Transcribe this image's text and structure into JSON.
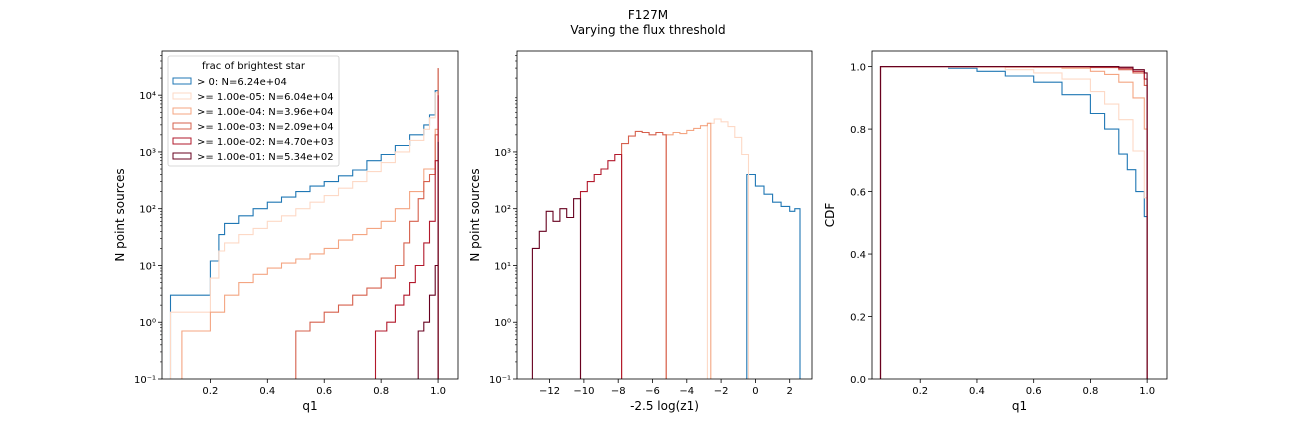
{
  "figure": {
    "title": "F127M",
    "subtitle": "Varying the flux threshold"
  },
  "colors": {
    "blue": "#1f77b4",
    "palest": "#fdd9c6",
    "pale": "#f4a582",
    "medium": "#d6604d",
    "dark": "#b2182b",
    "darkest": "#67001f"
  },
  "chart_data": [
    {
      "type": "histogram-step",
      "xlabel": "q1",
      "ylabel": "N point sources",
      "yscale": "log",
      "xlim": [
        0.03,
        1.07
      ],
      "ylim": [
        0.1,
        60000
      ],
      "xticks": [
        0.2,
        0.4,
        0.6,
        0.8,
        1.0
      ],
      "xtick_labels": [
        "0.2",
        "0.4",
        "0.6",
        "0.8",
        "1.0"
      ],
      "yticks": [
        0.1,
        1,
        10,
        100,
        1000,
        10000
      ],
      "ytick_labels": [
        "10⁻¹",
        "10⁰",
        "10¹",
        "10²",
        "10³",
        "10⁴"
      ],
      "legend": {
        "title": "frac of brightest star",
        "placement": "upper-left",
        "entries": [
          "> 0: N=6.24e+04",
          ">= 1.00e-05: N=6.04e+04",
          ">= 1.00e-04: N=3.96e+04",
          ">= 1.00e-03: N=2.09e+04",
          ">= 1.00e-02: N=4.70e+03",
          ">= 1.00e-01: N=5.34e+02"
        ]
      },
      "series": [
        {
          "color_key": "blue",
          "x": [
            0.06,
            0.2,
            0.23,
            0.25,
            0.3,
            0.35,
            0.4,
            0.45,
            0.5,
            0.55,
            0.6,
            0.65,
            0.7,
            0.75,
            0.8,
            0.85,
            0.9,
            0.95,
            0.97,
            0.99,
            1.0
          ],
          "y": [
            3,
            12,
            35,
            55,
            75,
            100,
            130,
            160,
            200,
            250,
            300,
            380,
            480,
            700,
            900,
            1300,
            2000,
            3000,
            4500,
            12000,
            30000
          ]
        },
        {
          "color_key": "palest",
          "x": [
            0.06,
            0.2,
            0.23,
            0.25,
            0.3,
            0.35,
            0.4,
            0.45,
            0.5,
            0.55,
            0.6,
            0.65,
            0.7,
            0.75,
            0.8,
            0.85,
            0.9,
            0.95,
            0.97,
            0.99,
            1.0
          ],
          "y": [
            1.5,
            6,
            18,
            25,
            35,
            45,
            60,
            75,
            100,
            130,
            170,
            230,
            300,
            450,
            650,
            1000,
            1600,
            2500,
            4000,
            11000,
            30000
          ]
        },
        {
          "color_key": "pale",
          "x": [
            0.1,
            0.2,
            0.25,
            0.3,
            0.35,
            0.4,
            0.45,
            0.5,
            0.55,
            0.6,
            0.65,
            0.7,
            0.75,
            0.8,
            0.85,
            0.9,
            0.95,
            0.99,
            1.0
          ],
          "y": [
            0.7,
            1.5,
            3,
            5,
            7,
            9,
            11,
            13,
            16,
            20,
            28,
            35,
            45,
            60,
            100,
            200,
            500,
            2500,
            30000
          ]
        },
        {
          "color_key": "medium",
          "x": [
            0.5,
            0.55,
            0.6,
            0.65,
            0.7,
            0.75,
            0.8,
            0.85,
            0.88,
            0.9,
            0.93,
            0.95,
            0.97,
            0.99,
            1.0
          ],
          "y": [
            0.7,
            1,
            1.5,
            2,
            3,
            4,
            6,
            10,
            25,
            60,
            150,
            300,
            400,
            2000,
            30000
          ]
        },
        {
          "color_key": "dark",
          "x": [
            0.78,
            0.82,
            0.85,
            0.88,
            0.9,
            0.92,
            0.95,
            0.97,
            0.99,
            1.0
          ],
          "y": [
            0.7,
            1,
            2,
            3,
            5,
            10,
            25,
            60,
            700,
            10000
          ]
        },
        {
          "color_key": "darkest",
          "x": [
            0.93,
            0.95,
            0.97,
            0.99,
            1.0
          ],
          "y": [
            0.7,
            1,
            3,
            10,
            1500
          ]
        }
      ]
    },
    {
      "type": "histogram-step",
      "xlabel": "-2.5 log(z1)",
      "ylabel": "N point sources",
      "yscale": "log",
      "xlim": [
        -13.9,
        3.3
      ],
      "ylim": [
        0.1,
        60000
      ],
      "xticks": [
        -12,
        -10,
        -8,
        -6,
        -4,
        -2,
        0,
        2
      ],
      "xtick_labels": [
        "−12",
        "−10",
        "−8",
        "−6",
        "−4",
        "−2",
        "0",
        "2"
      ],
      "yticks": [
        0.1,
        1,
        10,
        100,
        1000
      ],
      "ytick_labels": [
        "10⁻¹",
        "10⁰",
        "10¹",
        "10²",
        "10³"
      ],
      "series": [
        {
          "color_key": "blue",
          "x": [
            -0.5,
            0,
            0.5,
            1,
            1.5,
            2,
            2.3,
            2.6
          ],
          "y": [
            400,
            250,
            180,
            130,
            110,
            90,
            100,
            0.1
          ]
        },
        {
          "color_key": "palest",
          "x": [
            -2.8,
            -2.4,
            -2,
            -1.6,
            -1.2,
            -0.8,
            -0.4
          ],
          "y": [
            3200,
            3800,
            3400,
            2800,
            1800,
            900,
            0.1
          ]
        },
        {
          "color_key": "pale",
          "x": [
            -5.2,
            -4.8,
            -4.4,
            -4,
            -3.6,
            -3.2,
            -2.8,
            -2.6
          ],
          "y": [
            2000,
            2200,
            2100,
            2400,
            2600,
            2900,
            3200,
            0.1
          ]
        },
        {
          "color_key": "medium",
          "x": [
            -7.8,
            -7.4,
            -7,
            -6.6,
            -6.2,
            -5.8,
            -5.4,
            -5.2
          ],
          "y": [
            1400,
            1900,
            2300,
            2200,
            2000,
            2200,
            2000,
            0.1
          ]
        },
        {
          "color_key": "dark",
          "x": [
            -10.2,
            -9.8,
            -9.4,
            -9,
            -8.6,
            -8.2,
            -7.8
          ],
          "y": [
            200,
            300,
            400,
            500,
            700,
            900,
            0.1
          ]
        },
        {
          "color_key": "darkest",
          "x": [
            -13,
            -12.6,
            -12.2,
            -11.8,
            -11.4,
            -11,
            -10.6,
            -10.2
          ],
          "y": [
            20,
            40,
            90,
            60,
            100,
            70,
            150,
            0.1
          ]
        }
      ]
    },
    {
      "type": "cdf-step",
      "xlabel": "q1",
      "ylabel": "CDF",
      "xlim": [
        0.03,
        1.07
      ],
      "ylim": [
        0,
        1.05
      ],
      "xticks": [
        0.2,
        0.4,
        0.6,
        0.8,
        1.0
      ],
      "xtick_labels": [
        "0.2",
        "0.4",
        "0.6",
        "0.8",
        "1.0"
      ],
      "yticks": [
        0.0,
        0.2,
        0.4,
        0.6,
        0.8,
        1.0
      ],
      "ytick_labels": [
        "0.0",
        "0.2",
        "0.4",
        "0.6",
        "0.8",
        "1.0"
      ],
      "series": [
        {
          "color_key": "blue",
          "x": [
            0.06,
            0.3,
            0.4,
            0.5,
            0.6,
            0.7,
            0.8,
            0.85,
            0.9,
            0.93,
            0.96,
            0.99,
            1.0
          ],
          "y": [
            1.0,
            0.995,
            0.985,
            0.97,
            0.95,
            0.91,
            0.85,
            0.8,
            0.72,
            0.67,
            0.6,
            0.52,
            0.0
          ]
        },
        {
          "color_key": "palest",
          "x": [
            0.06,
            0.3,
            0.5,
            0.6,
            0.7,
            0.8,
            0.85,
            0.9,
            0.95,
            0.99,
            1.0
          ],
          "y": [
            1.0,
            0.998,
            0.99,
            0.98,
            0.96,
            0.92,
            0.88,
            0.83,
            0.73,
            0.58,
            0.0
          ]
        },
        {
          "color_key": "pale",
          "x": [
            0.06,
            0.5,
            0.7,
            0.8,
            0.85,
            0.9,
            0.95,
            0.99,
            1.0
          ],
          "y": [
            1.0,
            0.998,
            0.995,
            0.985,
            0.975,
            0.95,
            0.9,
            0.8,
            0.0
          ]
        },
        {
          "color_key": "medium",
          "x": [
            0.06,
            0.6,
            0.8,
            0.9,
            0.95,
            0.99,
            1.0
          ],
          "y": [
            1.0,
            0.999,
            0.997,
            0.99,
            0.98,
            0.94,
            0.0
          ]
        },
        {
          "color_key": "dark",
          "x": [
            0.06,
            0.8,
            0.9,
            0.95,
            0.99,
            1.0
          ],
          "y": [
            1.0,
            0.999,
            0.995,
            0.985,
            0.96,
            0.0
          ]
        },
        {
          "color_key": "darkest",
          "x": [
            0.06,
            0.9,
            0.95,
            0.99,
            1.0
          ],
          "y": [
            1.0,
            0.998,
            0.99,
            0.98,
            0.0
          ]
        }
      ]
    }
  ]
}
